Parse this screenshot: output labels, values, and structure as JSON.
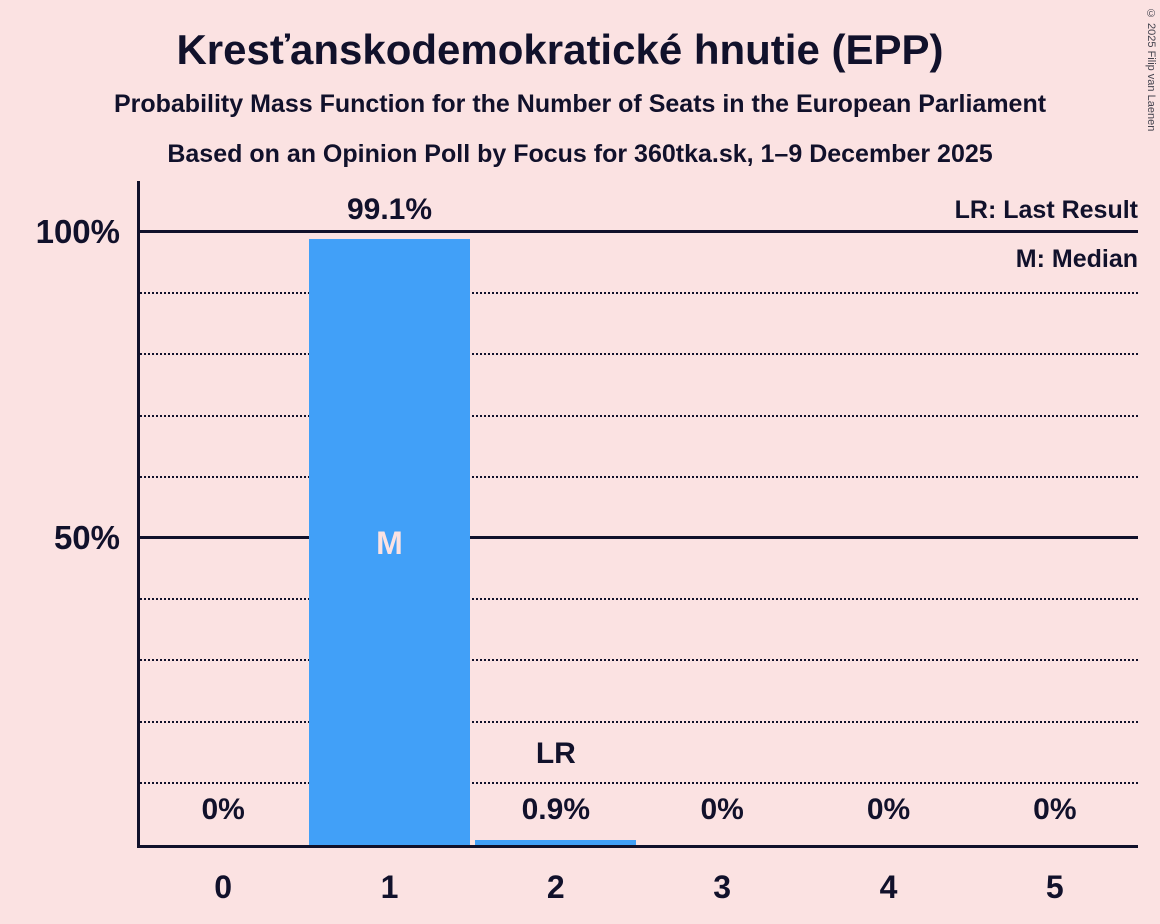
{
  "copyright": "© 2025 Filip van Laenen",
  "legend": {
    "lr": "LR: Last Result",
    "m": "M: Median"
  },
  "colors": {
    "background": "#fbe2e2",
    "bar": "#41a0f8",
    "text": "#11112b"
  },
  "chart_data": {
    "type": "bar",
    "title": "Kresťanskodemokratické hnutie (EPP)",
    "subtitle1": "Probability Mass Function for the Number of Seats in the European Parliament",
    "subtitle2": "Based on an Opinion Poll by Focus for 360tka.sk, 1–9 December 2025",
    "categories": [
      "0",
      "1",
      "2",
      "3",
      "4",
      "5"
    ],
    "values": [
      0,
      99.1,
      0.9,
      0,
      0,
      0
    ],
    "value_labels": [
      "0%",
      "99.1%",
      "0.9%",
      "0%",
      "0%",
      "0%"
    ],
    "median_category": "1",
    "median_marker": "M",
    "last_result_category": "2",
    "last_result_marker": "LR",
    "y_axis": {
      "range": [
        0,
        100
      ],
      "ticks": [
        {
          "value": 100,
          "label": "100%"
        },
        {
          "value": 50,
          "label": "50%"
        }
      ],
      "gridlines": [
        {
          "value": 10,
          "style": "dotted"
        },
        {
          "value": 20,
          "style": "dotted"
        },
        {
          "value": 30,
          "style": "dotted"
        },
        {
          "value": 40,
          "style": "dotted"
        },
        {
          "value": 50,
          "style": "solid"
        },
        {
          "value": 60,
          "style": "dotted"
        },
        {
          "value": 70,
          "style": "dotted"
        },
        {
          "value": 80,
          "style": "dotted"
        },
        {
          "value": 90,
          "style": "dotted"
        },
        {
          "value": 100,
          "style": "solid"
        }
      ]
    }
  }
}
